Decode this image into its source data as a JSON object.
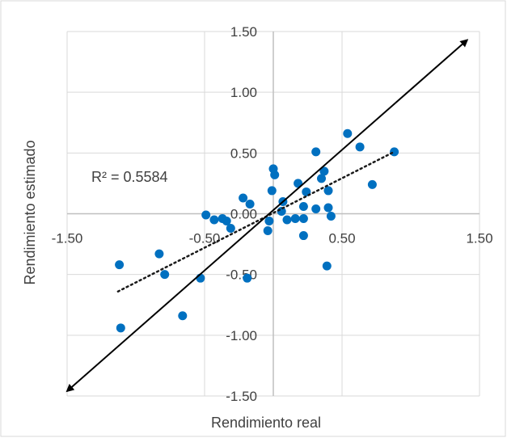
{
  "chart_data": {
    "type": "scatter",
    "title": "",
    "xlabel": "Rendimiento real",
    "ylabel": "Rendimiento estimado",
    "xlim": [
      -1.5,
      1.5
    ],
    "ylim": [
      -1.5,
      1.5
    ],
    "grid": true,
    "x_ticks": [
      "-1.50",
      "-0.50",
      "0.50",
      "1.50"
    ],
    "y_ticks": [
      "1.50",
      "1.00",
      "0.50",
      "0.00",
      "-0.50",
      "-1.00",
      "-1.50"
    ],
    "annotation": "R² = 0.5584",
    "colors": {
      "points": "#0070C0",
      "trendline": "#1a1a1a",
      "arrow": "#000000",
      "grid": "#d9d9d9"
    },
    "trendline": {
      "style": "dotted",
      "x": [
        -1.13,
        0.88
      ],
      "y": [
        -0.64,
        0.51
      ]
    },
    "identity_arrow": {
      "x": [
        -1.5,
        1.41
      ],
      "y": [
        -1.46,
        1.43
      ]
    },
    "points": [
      {
        "x": 0.54,
        "y": 0.66
      },
      {
        "x": 0.63,
        "y": 0.55
      },
      {
        "x": 0.88,
        "y": 0.51
      },
      {
        "x": 0.31,
        "y": 0.51
      },
      {
        "x": 0.72,
        "y": 0.24
      },
      {
        "x": 0.0,
        "y": 0.37
      },
      {
        "x": 0.01,
        "y": 0.32
      },
      {
        "x": 0.37,
        "y": 0.35
      },
      {
        "x": 0.35,
        "y": 0.29
      },
      {
        "x": 0.18,
        "y": 0.25
      },
      {
        "x": 0.4,
        "y": 0.19
      },
      {
        "x": 0.24,
        "y": 0.18
      },
      {
        "x": -0.01,
        "y": 0.19
      },
      {
        "x": -0.22,
        "y": 0.13
      },
      {
        "x": -0.17,
        "y": 0.08
      },
      {
        "x": 0.07,
        "y": 0.1
      },
      {
        "x": 0.22,
        "y": 0.06
      },
      {
        "x": 0.4,
        "y": 0.05
      },
      {
        "x": 0.31,
        "y": 0.04
      },
      {
        "x": 0.06,
        "y": 0.02
      },
      {
        "x": -0.49,
        "y": -0.01
      },
      {
        "x": -0.43,
        "y": -0.05
      },
      {
        "x": -0.37,
        "y": -0.04
      },
      {
        "x": -0.34,
        "y": -0.06
      },
      {
        "x": -0.03,
        "y": -0.06
      },
      {
        "x": 0.1,
        "y": -0.05
      },
      {
        "x": 0.16,
        "y": -0.04
      },
      {
        "x": 0.22,
        "y": -0.04
      },
      {
        "x": 0.42,
        "y": -0.02
      },
      {
        "x": -0.31,
        "y": -0.12
      },
      {
        "x": -0.04,
        "y": -0.14
      },
      {
        "x": 0.22,
        "y": -0.18
      },
      {
        "x": -0.83,
        "y": -0.33
      },
      {
        "x": -1.12,
        "y": -0.42
      },
      {
        "x": -0.79,
        "y": -0.5
      },
      {
        "x": -0.53,
        "y": -0.53
      },
      {
        "x": -0.19,
        "y": -0.53
      },
      {
        "x": 0.39,
        "y": -0.43
      },
      {
        "x": -0.66,
        "y": -0.84
      },
      {
        "x": -1.11,
        "y": -0.94
      }
    ]
  }
}
